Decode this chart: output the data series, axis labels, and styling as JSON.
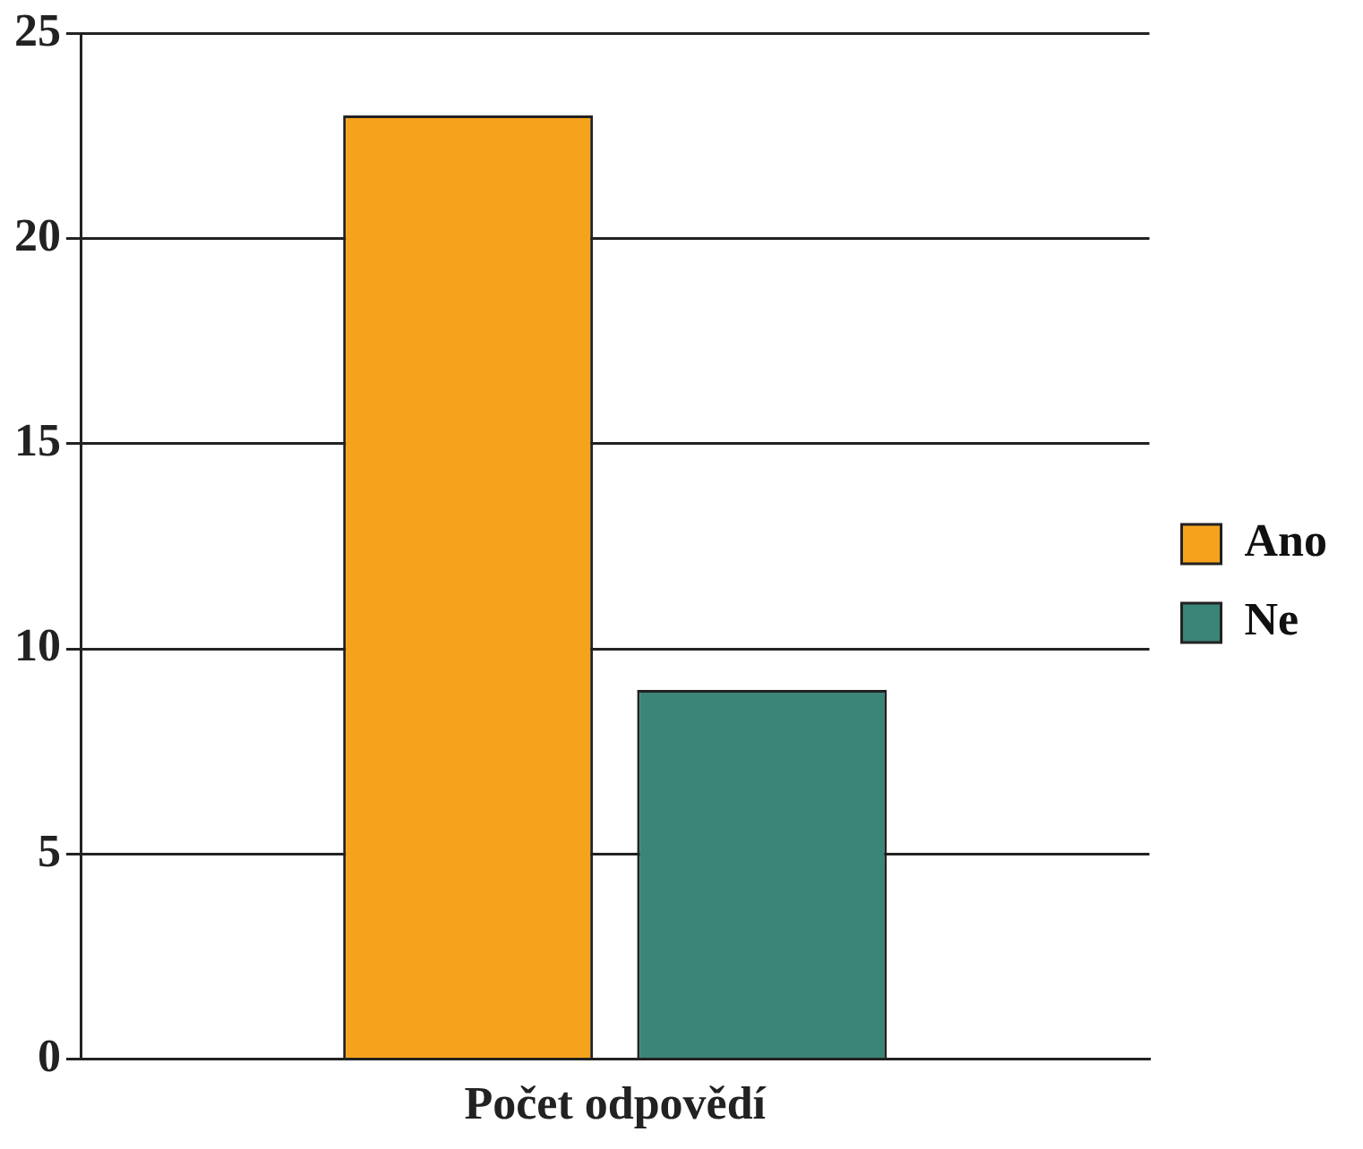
{
  "chart_data": {
    "type": "bar",
    "categories": [
      "Počet odpovědí"
    ],
    "series": [
      {
        "name": "Ano",
        "color": "#f5a31c",
        "values": [
          23
        ]
      },
      {
        "name": "Ne",
        "color": "#3a8478",
        "values": [
          9
        ]
      }
    ],
    "ylim": [
      0,
      25
    ],
    "yticks": [
      0,
      5,
      10,
      15,
      20,
      25
    ],
    "grid": "y",
    "legend": "right"
  }
}
